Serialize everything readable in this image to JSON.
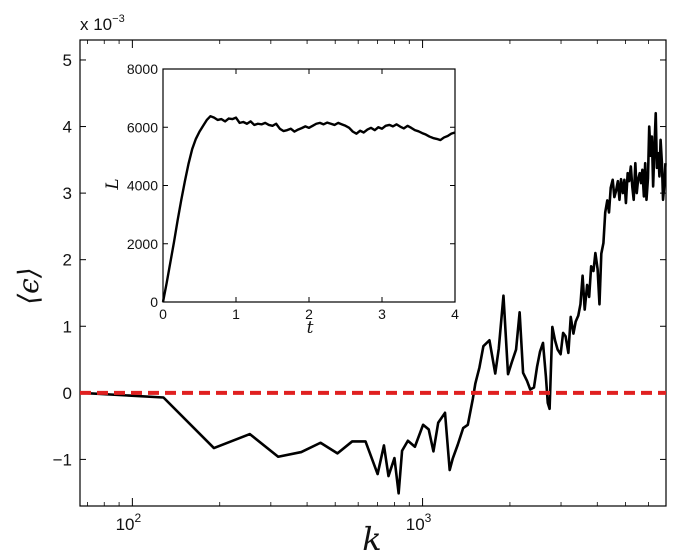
{
  "chart_data": [
    {
      "type": "line",
      "title": "",
      "xlabel": "k",
      "ylabel": "⟨ϵ⟩",
      "xscale": "log",
      "xlim": [
        66,
        6900
      ],
      "ylim": [
        -0.0017,
        0.0053
      ],
      "y_multiplier_label": "x 10",
      "y_multiplier_exponent": "−3",
      "x_ticks": [
        {
          "value": 100,
          "base": "10",
          "exp": "2"
        },
        {
          "value": 1000,
          "base": "10",
          "exp": "3"
        }
      ],
      "y_ticks": [
        {
          "value": -0.001,
          "label": "−1"
        },
        {
          "value": 0,
          "label": "0"
        },
        {
          "value": 0.001,
          "label": "1"
        },
        {
          "value": 0.002,
          "label": "2"
        },
        {
          "value": 0.003,
          "label": "3"
        },
        {
          "value": 0.004,
          "label": "4"
        },
        {
          "value": 0.005,
          "label": "5"
        }
      ],
      "grid": false,
      "series": [
        {
          "color": "#000000",
          "style": "solid",
          "x": [
            66,
            128,
            191,
            254,
            318,
            382,
            445,
            509,
            572,
            636,
            700,
            736,
            763,
            800,
            827,
            850,
            890,
            941,
            1004,
            1050,
            1090,
            1132,
            1195,
            1240,
            1270,
            1322,
            1380,
            1432,
            1490,
            1520,
            1570,
            1620,
            1700,
            1780,
            1830,
            1900,
            1970,
            2030,
            2100,
            2160,
            2220,
            2290,
            2350,
            2420,
            2480,
            2540,
            2600,
            2660,
            2700,
            2740,
            2800,
            2860,
            2920,
            2990,
            3050,
            3110,
            3180,
            3240,
            3310,
            3370,
            3440,
            3500,
            3560,
            3620,
            3690,
            3750,
            3810,
            3880,
            3940,
            4010,
            4070,
            4130,
            4200,
            4260,
            4330,
            4390,
            4450,
            4520,
            4580,
            4640,
            4710,
            4770,
            4830,
            4900,
            4960,
            5020,
            5090,
            5150,
            5220,
            5280,
            5340,
            5410,
            5470,
            5530,
            5600,
            5660,
            5720,
            5790,
            5850,
            5910,
            5980,
            6040,
            6110,
            6170,
            6230,
            6300,
            6360,
            6420,
            6490,
            6550,
            6610,
            6680,
            6740,
            6800,
            6870
          ],
          "y": [
            0.0,
            -7e-05,
            -0.00083,
            -0.00062,
            -0.00096,
            -0.00089,
            -0.00075,
            -0.00091,
            -0.00073,
            -0.00073,
            -0.00122,
            -0.00079,
            -0.00125,
            -0.00098,
            -0.00151,
            -0.00087,
            -0.00072,
            -0.00081,
            -0.00048,
            -0.00055,
            -0.00088,
            -0.00045,
            -0.0003,
            -0.00116,
            -0.00099,
            -0.00078,
            -0.00053,
            -0.00048,
            -9e-05,
            0.00014,
            0.00038,
            0.0007,
            0.00079,
            0.00029,
            0.00066,
            0.00146,
            0.00028,
            0.00046,
            0.00065,
            0.00121,
            0.0003,
            0.00018,
            5e-05,
            8e-05,
            0.00039,
            0.00062,
            0.00075,
            0.00025,
            -0.00015,
            -0.00024,
            0.00099,
            0.00079,
            0.00065,
            0.00058,
            0.0009,
            0.00085,
            0.0006,
            0.00114,
            0.00089,
            0.00107,
            0.00116,
            0.00133,
            0.00176,
            0.00125,
            0.00162,
            0.00144,
            0.0019,
            0.00183,
            0.0021,
            0.00186,
            0.00133,
            0.00209,
            0.00225,
            0.00271,
            0.00289,
            0.00271,
            0.00308,
            0.0032,
            0.00294,
            0.00303,
            0.00318,
            0.0029,
            0.00321,
            0.003,
            0.0032,
            0.00285,
            0.0033,
            0.00318,
            0.0034,
            0.0031,
            0.0029,
            0.00345,
            0.003,
            0.0032,
            0.0033,
            0.00315,
            0.00335,
            0.00295,
            0.00345,
            0.0029,
            0.00322,
            0.004,
            0.00356,
            0.00385,
            0.0031,
            0.00372,
            0.0042,
            0.00338,
            0.0036,
            0.00325,
            0.0038,
            0.00345,
            0.0029,
            0.0031,
            0.00345
          ]
        },
        {
          "color": "#e02020",
          "style": "dashed",
          "x": [
            66,
            6900
          ],
          "y": [
            0,
            0
          ]
        }
      ]
    },
    {
      "type": "line",
      "title": "",
      "xlabel": "t",
      "ylabel": "L",
      "xlim": [
        0,
        4
      ],
      "ylim": [
        0,
        8000
      ],
      "x_ticks": [
        0,
        1,
        2,
        3,
        4
      ],
      "y_ticks": [
        0,
        2000,
        4000,
        6000,
        8000
      ],
      "grid": false,
      "series": [
        {
          "color": "#000000",
          "style": "solid",
          "x": [
            0,
            0.05,
            0.1,
            0.15,
            0.2,
            0.25,
            0.3,
            0.35,
            0.4,
            0.45,
            0.5,
            0.55,
            0.6,
            0.65,
            0.7,
            0.75,
            0.8,
            0.85,
            0.9,
            0.95,
            1.0,
            1.05,
            1.1,
            1.15,
            1.2,
            1.25,
            1.3,
            1.35,
            1.4,
            1.45,
            1.5,
            1.55,
            1.6,
            1.65,
            1.7,
            1.75,
            1.8,
            1.85,
            1.9,
            1.95,
            2.0,
            2.05,
            2.1,
            2.15,
            2.2,
            2.25,
            2.3,
            2.35,
            2.4,
            2.45,
            2.5,
            2.55,
            2.6,
            2.65,
            2.7,
            2.75,
            2.8,
            2.85,
            2.9,
            2.95,
            3.0,
            3.05,
            3.1,
            3.15,
            3.2,
            3.25,
            3.3,
            3.35,
            3.4,
            3.45,
            3.5,
            3.55,
            3.6,
            3.65,
            3.7,
            3.75,
            3.8,
            3.85,
            3.9,
            3.95,
            4.0
          ],
          "y": [
            0,
            650,
            1350,
            2050,
            2800,
            3500,
            4150,
            4750,
            5250,
            5600,
            5850,
            6050,
            6250,
            6380,
            6330,
            6250,
            6280,
            6200,
            6300,
            6280,
            6330,
            6150,
            6180,
            6120,
            6200,
            6080,
            6120,
            6100,
            6150,
            6080,
            6050,
            6120,
            5950,
            5870,
            5900,
            5950,
            5850,
            5920,
            5970,
            6030,
            5980,
            6050,
            6120,
            6150,
            6100,
            6160,
            6120,
            6080,
            6150,
            6100,
            6050,
            5980,
            5850,
            5780,
            5880,
            5820,
            5920,
            5980,
            5900,
            6000,
            5950,
            6050,
            6080,
            6030,
            6100,
            6020,
            5960,
            6050,
            5980,
            5900,
            5860,
            5800,
            5750,
            5680,
            5630,
            5600,
            5560,
            5650,
            5700,
            5780,
            5820
          ]
        }
      ]
    }
  ]
}
